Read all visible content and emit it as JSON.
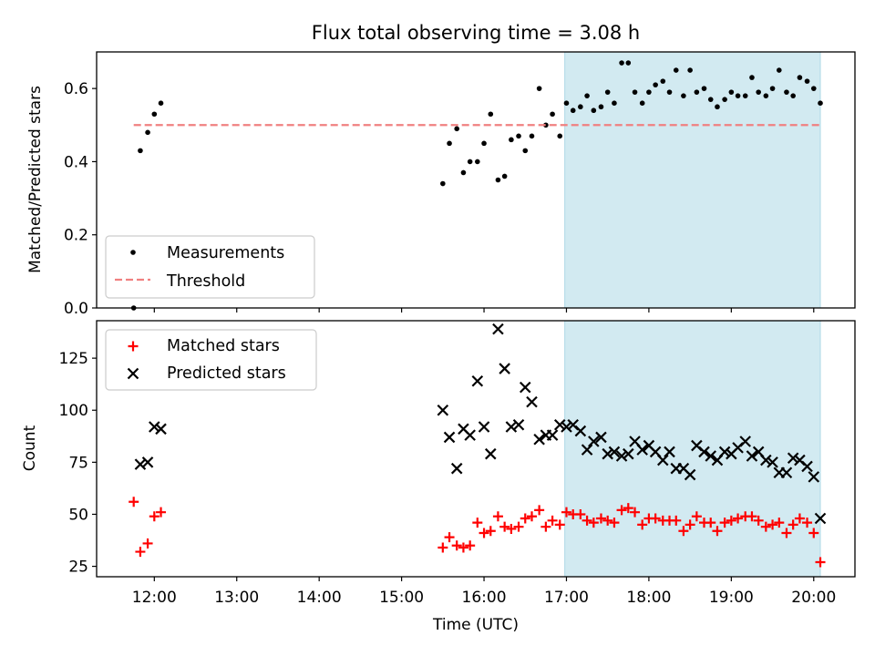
{
  "colors": {
    "measurements": "#000000",
    "threshold": "#f08080",
    "matched": "#ff0000",
    "predicted": "#000000",
    "highlight": "#add8e6"
  },
  "chart_data": [
    {
      "type": "scatter",
      "title": "Flux total observing time = 3.08 h",
      "ylabel": "Matched/Predicted stars",
      "xlabel": "",
      "x_unit": "hours UTC",
      "xlim": [
        11.3,
        20.5
      ],
      "ylim": [
        0,
        0.7
      ],
      "y_ticks": [
        0.0,
        0.2,
        0.4,
        0.6
      ],
      "y_tick_labels": [
        "0.0",
        "0.2",
        "0.4",
        "0.6"
      ],
      "grid": false,
      "legend": "lower-left",
      "highlight_span": [
        16.98,
        20.08
      ],
      "series": [
        {
          "name": "Measurements",
          "kind": "scatter",
          "x": [
            11.75,
            11.83,
            11.92,
            12.0,
            12.08,
            15.5,
            15.58,
            15.67,
            15.75,
            15.83,
            15.92,
            16.0,
            16.08,
            16.17,
            16.25,
            16.33,
            16.42,
            16.5,
            16.58,
            16.67,
            16.75,
            16.83,
            16.92,
            17.0,
            17.08,
            17.17,
            17.25,
            17.33,
            17.42,
            17.5,
            17.58,
            17.67,
            17.75,
            17.83,
            17.92,
            18.0,
            18.08,
            18.17,
            18.25,
            18.33,
            18.42,
            18.5,
            18.58,
            18.67,
            18.75,
            18.83,
            18.92,
            19.0,
            19.08,
            19.17,
            19.25,
            19.33,
            19.42,
            19.5,
            19.58,
            19.67,
            19.75,
            19.83,
            19.92,
            20.0,
            20.08
          ],
          "y": [
            0.0,
            0.43,
            0.48,
            0.53,
            0.56,
            0.34,
            0.45,
            0.49,
            0.37,
            0.4,
            0.4,
            0.45,
            0.53,
            0.35,
            0.36,
            0.46,
            0.47,
            0.43,
            0.47,
            0.6,
            0.5,
            0.53,
            0.47,
            0.56,
            0.54,
            0.55,
            0.58,
            0.54,
            0.55,
            0.59,
            0.56,
            0.67,
            0.67,
            0.59,
            0.56,
            0.59,
            0.61,
            0.62,
            0.59,
            0.65,
            0.58,
            0.65,
            0.59,
            0.6,
            0.57,
            0.55,
            0.57,
            0.59,
            0.58,
            0.58,
            0.63,
            0.59,
            0.58,
            0.6,
            0.65,
            0.59,
            0.58,
            0.63,
            0.62,
            0.6,
            0.56
          ]
        },
        {
          "name": "Threshold",
          "kind": "hline",
          "x": [
            11.75,
            20.08
          ],
          "y": 0.5
        }
      ]
    },
    {
      "type": "scatter",
      "title": "",
      "ylabel": "Count",
      "xlabel": "Time (UTC)",
      "x_unit": "hours UTC",
      "xlim": [
        11.3,
        20.5
      ],
      "ylim": [
        20,
        143
      ],
      "y_ticks": [
        25,
        50,
        75,
        100,
        125
      ],
      "y_tick_labels": [
        "25",
        "50",
        "75",
        "100",
        "125"
      ],
      "x_ticks": [
        12,
        13,
        14,
        15,
        16,
        17,
        18,
        19,
        20
      ],
      "x_tick_labels": [
        "12:00",
        "13:00",
        "14:00",
        "15:00",
        "16:00",
        "17:00",
        "18:00",
        "19:00",
        "20:00"
      ],
      "grid": false,
      "legend": "top-left",
      "highlight_span": [
        16.98,
        20.08
      ],
      "series": [
        {
          "name": "Matched stars",
          "kind": "plus",
          "x": [
            11.75,
            11.83,
            11.92,
            12.0,
            12.08,
            15.5,
            15.58,
            15.67,
            15.75,
            15.83,
            15.92,
            16.0,
            16.08,
            16.17,
            16.25,
            16.33,
            16.42,
            16.5,
            16.58,
            16.67,
            16.75,
            16.83,
            16.92,
            17.0,
            17.08,
            17.17,
            17.25,
            17.33,
            17.42,
            17.5,
            17.58,
            17.67,
            17.75,
            17.83,
            17.92,
            18.0,
            18.08,
            18.17,
            18.25,
            18.33,
            18.42,
            18.5,
            18.58,
            18.67,
            18.75,
            18.83,
            18.92,
            19.0,
            19.08,
            19.17,
            19.25,
            19.33,
            19.42,
            19.5,
            19.58,
            19.67,
            19.75,
            19.83,
            19.92,
            20.0,
            20.08
          ],
          "y": [
            56,
            32,
            36,
            49,
            51,
            34,
            39,
            35,
            34,
            35,
            46,
            41,
            42,
            49,
            44,
            43,
            44,
            48,
            49,
            52,
            44,
            47,
            45,
            51,
            50,
            50,
            47,
            46,
            48,
            47,
            46,
            52,
            53,
            51,
            45,
            48,
            48,
            47,
            47,
            47,
            42,
            45,
            49,
            46,
            46,
            42,
            46,
            47,
            48,
            49,
            49,
            47,
            44,
            45,
            46,
            41,
            45,
            48,
            46,
            41,
            27
          ]
        },
        {
          "name": "Predicted stars",
          "kind": "x",
          "x": [
            11.83,
            11.92,
            12.0,
            12.08,
            15.5,
            15.58,
            15.67,
            15.75,
            15.83,
            15.92,
            16.0,
            16.08,
            16.17,
            16.25,
            16.33,
            16.42,
            16.5,
            16.58,
            16.67,
            16.75,
            16.83,
            16.92,
            17.0,
            17.08,
            17.17,
            17.25,
            17.33,
            17.42,
            17.5,
            17.58,
            17.67,
            17.75,
            17.83,
            17.92,
            18.0,
            18.08,
            18.17,
            18.25,
            18.33,
            18.42,
            18.5,
            18.58,
            18.67,
            18.75,
            18.83,
            18.92,
            19.0,
            19.08,
            19.17,
            19.25,
            19.33,
            19.42,
            19.5,
            19.58,
            19.67,
            19.75,
            19.83,
            19.92,
            20.0,
            20.08
          ],
          "y": [
            74,
            75,
            92,
            91,
            100,
            87,
            72,
            91,
            88,
            114,
            92,
            79,
            139,
            120,
            92,
            93,
            111,
            104,
            86,
            88,
            88,
            93,
            92,
            93,
            90,
            81,
            85,
            87,
            79,
            80,
            78,
            79,
            85,
            81,
            83,
            80,
            76,
            80,
            72,
            72,
            69,
            83,
            80,
            78,
            76,
            80,
            79,
            82,
            85,
            78,
            80,
            76,
            75,
            70,
            70,
            77,
            76,
            73,
            68,
            48
          ]
        }
      ]
    }
  ]
}
